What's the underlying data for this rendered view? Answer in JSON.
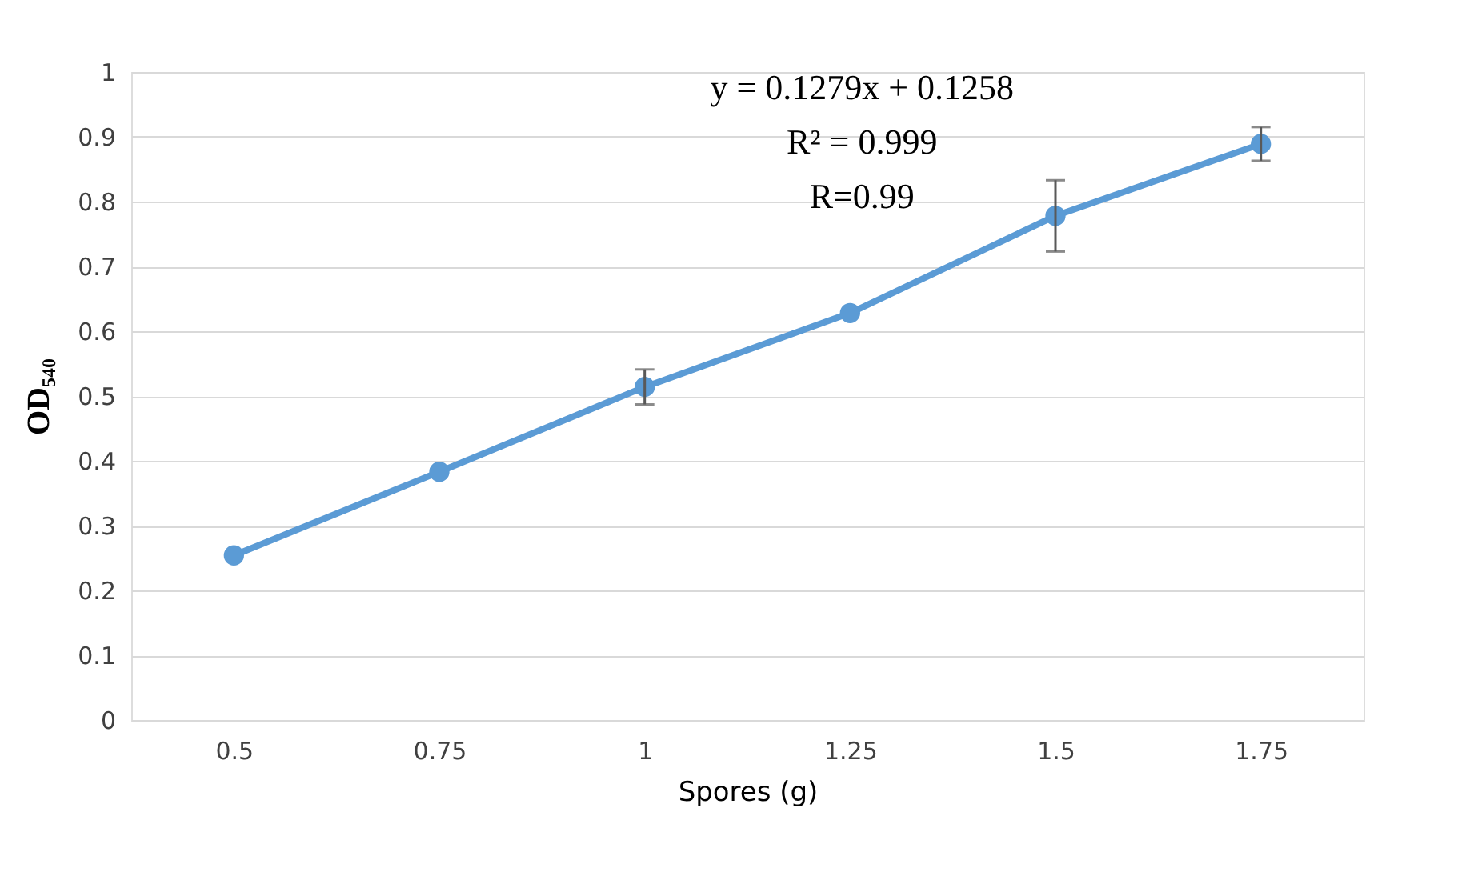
{
  "chart_data": {
    "type": "line",
    "xlabel": "Spores (g)",
    "ylabel": "OD₅₄₀",
    "categories": [
      "0.5",
      "0.75",
      "1",
      "1.25",
      "1.5",
      "1.75"
    ],
    "series": [
      {
        "color": "#5b9bd5",
        "values": [
          0.254,
          0.383,
          0.514,
          0.628,
          0.778,
          0.889
        ],
        "errors": [
          null,
          null,
          0.027,
          null,
          0.055,
          0.026
        ]
      }
    ],
    "ylim": [
      0,
      1
    ],
    "yticks": [
      0,
      0.1,
      0.2,
      0.3,
      0.4,
      0.5,
      0.6,
      0.7,
      0.8,
      0.9,
      1
    ],
    "grid": "y",
    "marker": "circle",
    "line_style": "solid",
    "annotations": [
      "y = 0.1279x + 0.1258",
      "R² = 0.999",
      "R=0.99"
    ]
  }
}
